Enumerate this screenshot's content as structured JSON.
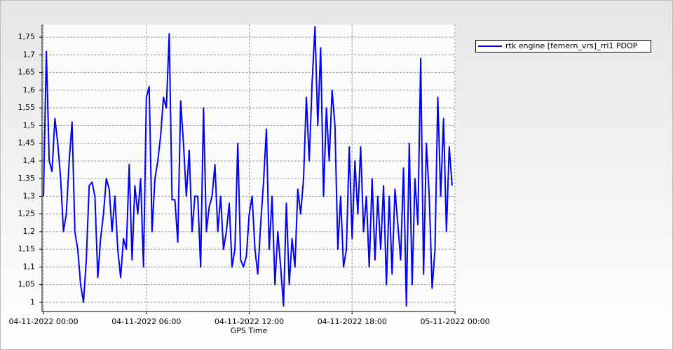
{
  "chart_data": {
    "type": "line",
    "x_label": "GPS Time",
    "x": [
      "04-11-2022 00:00",
      "04-11-2022 00:10",
      "04-11-2022 00:20",
      "04-11-2022 00:30",
      "04-11-2022 00:40",
      "04-11-2022 00:50",
      "04-11-2022 01:00",
      "04-11-2022 01:10",
      "04-11-2022 01:20",
      "04-11-2022 01:30",
      "04-11-2022 01:40",
      "04-11-2022 01:50",
      "04-11-2022 02:00",
      "04-11-2022 02:10",
      "04-11-2022 02:20",
      "04-11-2022 02:30",
      "04-11-2022 02:40",
      "04-11-2022 02:50",
      "04-11-2022 03:00",
      "04-11-2022 03:10",
      "04-11-2022 03:20",
      "04-11-2022 03:30",
      "04-11-2022 03:40",
      "04-11-2022 03:50",
      "04-11-2022 04:00",
      "04-11-2022 04:10",
      "04-11-2022 04:20",
      "04-11-2022 04:30",
      "04-11-2022 04:40",
      "04-11-2022 04:50",
      "04-11-2022 05:00",
      "04-11-2022 05:10",
      "04-11-2022 05:20",
      "04-11-2022 05:30",
      "04-11-2022 05:40",
      "04-11-2022 05:50",
      "04-11-2022 06:00",
      "04-11-2022 06:10",
      "04-11-2022 06:20",
      "04-11-2022 06:30",
      "04-11-2022 06:40",
      "04-11-2022 06:50",
      "04-11-2022 07:00",
      "04-11-2022 07:10",
      "04-11-2022 07:20",
      "04-11-2022 07:30",
      "04-11-2022 07:40",
      "04-11-2022 07:50",
      "04-11-2022 08:00",
      "04-11-2022 08:10",
      "04-11-2022 08:20",
      "04-11-2022 08:30",
      "04-11-2022 08:40",
      "04-11-2022 08:50",
      "04-11-2022 09:00",
      "04-11-2022 09:10",
      "04-11-2022 09:20",
      "04-11-2022 09:30",
      "04-11-2022 09:40",
      "04-11-2022 09:50",
      "04-11-2022 10:00",
      "04-11-2022 10:10",
      "04-11-2022 10:20",
      "04-11-2022 10:30",
      "04-11-2022 10:40",
      "04-11-2022 10:50",
      "04-11-2022 11:00",
      "04-11-2022 11:10",
      "04-11-2022 11:20",
      "04-11-2022 11:30",
      "04-11-2022 11:40",
      "04-11-2022 11:50",
      "04-11-2022 12:00",
      "04-11-2022 12:10",
      "04-11-2022 12:20",
      "04-11-2022 12:30",
      "04-11-2022 12:40",
      "04-11-2022 12:50",
      "04-11-2022 13:00",
      "04-11-2022 13:10",
      "04-11-2022 13:20",
      "04-11-2022 13:30",
      "04-11-2022 13:40",
      "04-11-2022 13:50",
      "04-11-2022 14:00",
      "04-11-2022 14:10",
      "04-11-2022 14:20",
      "04-11-2022 14:30",
      "04-11-2022 14:40",
      "04-11-2022 14:50",
      "04-11-2022 15:00",
      "04-11-2022 15:10",
      "04-11-2022 15:20",
      "04-11-2022 15:30",
      "04-11-2022 15:40",
      "04-11-2022 15:50",
      "04-11-2022 16:00",
      "04-11-2022 16:10",
      "04-11-2022 16:20",
      "04-11-2022 16:30",
      "04-11-2022 16:40",
      "04-11-2022 16:50",
      "04-11-2022 17:00",
      "04-11-2022 17:10",
      "04-11-2022 17:20",
      "04-11-2022 17:30",
      "04-11-2022 17:40",
      "04-11-2022 17:50",
      "04-11-2022 18:00",
      "04-11-2022 18:10",
      "04-11-2022 18:20",
      "04-11-2022 18:30",
      "04-11-2022 18:40",
      "04-11-2022 18:50",
      "04-11-2022 19:00",
      "04-11-2022 19:10",
      "04-11-2022 19:20",
      "04-11-2022 19:30",
      "04-11-2022 19:40",
      "04-11-2022 19:50",
      "04-11-2022 20:00",
      "04-11-2022 20:10",
      "04-11-2022 20:20",
      "04-11-2022 20:30",
      "04-11-2022 20:40",
      "04-11-2022 20:50",
      "04-11-2022 21:00",
      "04-11-2022 21:10",
      "04-11-2022 21:20",
      "04-11-2022 21:30",
      "04-11-2022 21:40",
      "04-11-2022 21:50",
      "04-11-2022 22:00",
      "04-11-2022 22:10",
      "04-11-2022 22:20",
      "04-11-2022 22:30",
      "04-11-2022 22:40",
      "04-11-2022 22:50",
      "04-11-2022 23:00",
      "04-11-2022 23:10",
      "04-11-2022 23:20",
      "04-11-2022 23:30",
      "04-11-2022 23:40",
      "04-11-2022 23:50"
    ],
    "series": [
      {
        "name": "rtk engine [femern_vrs]_rri1 PDOP",
        "color": "#0000ff",
        "values": [
          1.3,
          1.71,
          1.4,
          1.37,
          1.52,
          1.45,
          1.35,
          1.2,
          1.25,
          1.4,
          1.51,
          1.2,
          1.15,
          1.05,
          1.0,
          1.12,
          1.33,
          1.34,
          1.3,
          1.07,
          1.18,
          1.25,
          1.35,
          1.32,
          1.2,
          1.3,
          1.15,
          1.07,
          1.18,
          1.15,
          1.39,
          1.12,
          1.33,
          1.25,
          1.35,
          1.1,
          1.58,
          1.61,
          1.2,
          1.35,
          1.4,
          1.47,
          1.58,
          1.55,
          1.76,
          1.29,
          1.29,
          1.17,
          1.57,
          1.45,
          1.3,
          1.43,
          1.2,
          1.3,
          1.3,
          1.1,
          1.55,
          1.2,
          1.27,
          1.3,
          1.39,
          1.2,
          1.3,
          1.15,
          1.2,
          1.28,
          1.1,
          1.15,
          1.45,
          1.12,
          1.1,
          1.13,
          1.25,
          1.3,
          1.15,
          1.08,
          1.22,
          1.34,
          1.49,
          1.15,
          1.3,
          1.05,
          1.2,
          1.1,
          0.99,
          1.28,
          1.05,
          1.18,
          1.1,
          1.32,
          1.25,
          1.35,
          1.58,
          1.4,
          1.62,
          1.78,
          1.5,
          1.72,
          1.3,
          1.55,
          1.4,
          1.6,
          1.5,
          1.15,
          1.3,
          1.1,
          1.15,
          1.44,
          1.18,
          1.4,
          1.25,
          1.44,
          1.2,
          1.3,
          1.1,
          1.35,
          1.12,
          1.3,
          1.15,
          1.33,
          1.05,
          1.3,
          1.08,
          1.32,
          1.22,
          1.12,
          1.38,
          0.99,
          1.45,
          1.05,
          1.35,
          1.22,
          1.69,
          1.08,
          1.45,
          1.3,
          1.04,
          1.15,
          1.58,
          1.3,
          1.52,
          1.2,
          1.44,
          1.33
        ]
      }
    ],
    "xlim": [
      "04-11-2022 00:00",
      "05-11-2022 00:00"
    ],
    "xticks": [
      "04-11-2022 00:00",
      "04-11-2022 06:00",
      "04-11-2022 12:00",
      "04-11-2022 18:00",
      "05-11-2022 00:00"
    ],
    "ylim": [
      0.974,
      1.786
    ],
    "yticks": [
      1,
      {
        "value": 1.05,
        "label": "1,05"
      },
      {
        "value": 1.1,
        "label": "1,1"
      },
      {
        "value": 1.15,
        "label": "1,15"
      },
      {
        "value": 1.2,
        "label": "1,2"
      },
      {
        "value": 1.25,
        "label": "1,25"
      },
      {
        "value": 1.3,
        "label": "1,3"
      },
      {
        "value": 1.35,
        "label": "1,35"
      },
      {
        "value": 1.4,
        "label": "1,4"
      },
      {
        "value": 1.45,
        "label": "1,45"
      },
      {
        "value": 1.5,
        "label": "1,5"
      },
      {
        "value": 1.55,
        "label": "1,55"
      },
      {
        "value": 1.6,
        "label": "1,6"
      },
      {
        "value": 1.65,
        "label": "1,65"
      },
      {
        "value": 1.7,
        "label": "1,7"
      },
      {
        "value": 1.75,
        "label": "1,75"
      }
    ],
    "grid": true,
    "legend": "top-right"
  }
}
